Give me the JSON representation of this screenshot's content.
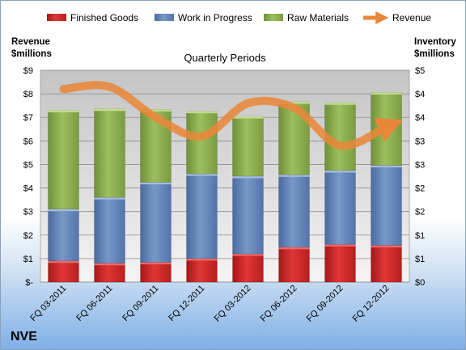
{
  "chart_data": {
    "type": "bar",
    "stacked": true,
    "title": "Quarterly Periods",
    "company": "NVE",
    "ylabel_left": [
      "Revenue",
      "$millions"
    ],
    "ylabel_right": [
      "Inventory",
      "$millions"
    ],
    "categories": [
      "FQ 03-2011",
      "FQ 06-2011",
      "FQ 09-2011",
      "FQ 12-2011",
      "FQ 03-2012",
      "FQ 06-2012",
      "FQ 09-2012",
      "FQ 12-2012"
    ],
    "left_ticks": [
      "$-",
      "$1",
      "$2",
      "$3",
      "$4",
      "$5",
      "$6",
      "$7",
      "$8",
      "$9"
    ],
    "right_ticks": [
      "$0",
      "$1",
      "$1",
      "$2",
      "$2",
      "$3",
      "$3",
      "$4",
      "$4",
      "$5"
    ],
    "ylim_left": [
      0,
      9
    ],
    "ylim_right": [
      0,
      4.5
    ],
    "grid": true,
    "legend_position": "top",
    "series": [
      {
        "name": "Finished Goods",
        "color": "#d42a2a",
        "axis": "right",
        "values": [
          0.45,
          0.4,
          0.42,
          0.5,
          0.6,
          0.74,
          0.8,
          0.78
        ]
      },
      {
        "name": "Work in Progress",
        "color": "#5c7fb8",
        "axis": "right",
        "values": [
          1.1,
          1.4,
          1.7,
          1.8,
          1.65,
          1.54,
          1.57,
          1.7
        ]
      },
      {
        "name": "Raw Materials",
        "color": "#8cae4f",
        "axis": "right",
        "values": [
          2.1,
          1.88,
          1.55,
          1.33,
          1.27,
          1.55,
          1.44,
          1.55
        ]
      },
      {
        "name": "Revenue",
        "color": "#e8873a",
        "axis": "left",
        "type": "line",
        "values": [
          8.2,
          8.3,
          7.0,
          6.2,
          7.6,
          7.4,
          5.8,
          6.6
        ]
      }
    ]
  }
}
